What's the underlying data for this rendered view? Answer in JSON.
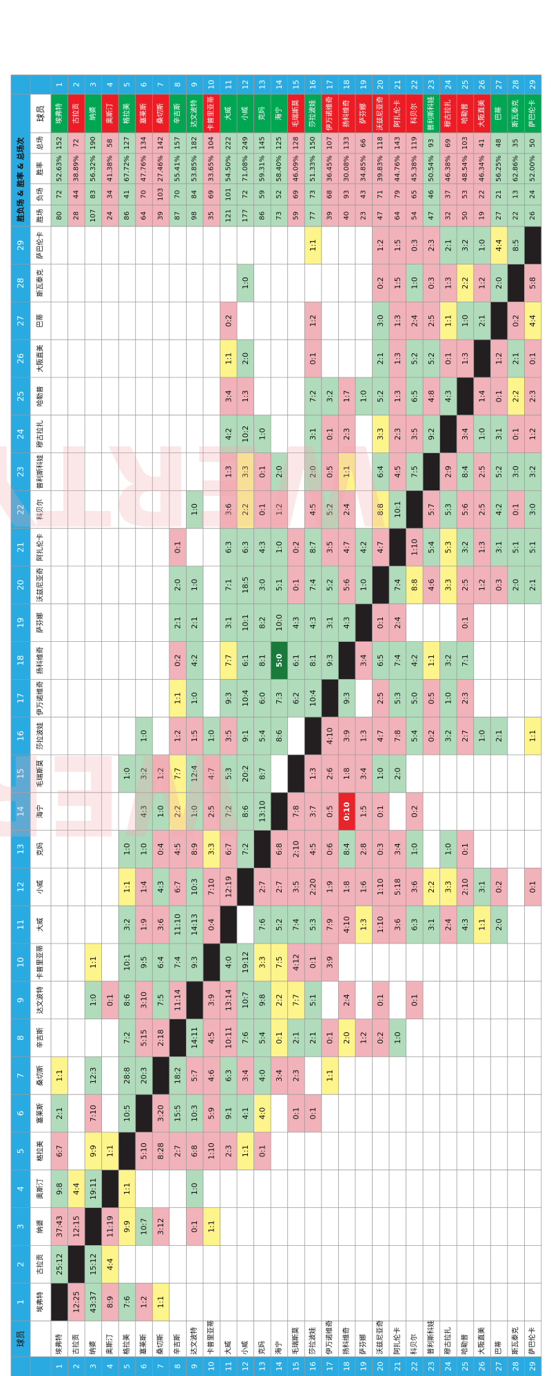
{
  "header": {
    "corner_label": "球员",
    "section_label": "胜负场 & 胜率 & 总场次",
    "col_numbers": [
      "1",
      "2",
      "3",
      "4",
      "5",
      "6",
      "7",
      "8",
      "9",
      "10",
      "11",
      "12",
      "13",
      "14",
      "15",
      "16",
      "17",
      "18",
      "19",
      "20",
      "21",
      "22",
      "23",
      "24",
      "25",
      "26",
      "27",
      "28",
      "29"
    ],
    "stats_headers": [
      "胜场",
      "负场",
      "胜率",
      "总场"
    ]
  },
  "watermark": "WERTY",
  "colors": {
    "header_blue": "#29abe2",
    "green": "#b0dcbb",
    "pink": "#f1b3b9",
    "yellow": "#fdf48c",
    "black": "#231f20",
    "dark_green": "#1a7a3c",
    "red": "#e8232a",
    "green_name": "#00a651",
    "red_name": "#ed1c24"
  },
  "players": [
    {
      "name": "埃弗特",
      "name_color": "green_name",
      "wins": 80,
      "losses": 72,
      "rate": "52.63%",
      "total": 152
    },
    {
      "name": "古拉贡",
      "name_color": "red_name",
      "wins": 28,
      "losses": 44,
      "rate": "38.89%",
      "total": 72
    },
    {
      "name": "纳婆",
      "name_color": "green_name",
      "wins": 107,
      "losses": 83,
      "rate": "56.32%",
      "total": 190
    },
    {
      "name": "奥斯汀",
      "name_color": "red_name",
      "wins": 24,
      "losses": 34,
      "rate": "41.38%",
      "total": 58
    },
    {
      "name": "格拉美",
      "name_color": "green_name",
      "wins": 86,
      "losses": 41,
      "rate": "67.72%",
      "total": 127
    },
    {
      "name": "塞莱斯",
      "name_color": "red_name",
      "wins": 64,
      "losses": 70,
      "rate": "47.76%",
      "total": 134
    },
    {
      "name": "桑切斯",
      "name_color": "red_name",
      "wins": 39,
      "losses": 103,
      "rate": "27.46%",
      "total": 142
    },
    {
      "name": "辛吉斯",
      "name_color": "green_name",
      "wins": 87,
      "losses": 70,
      "rate": "55.41%",
      "total": 157
    },
    {
      "name": "达文波特",
      "name_color": "green_name",
      "wins": 98,
      "losses": 84,
      "rate": "53.85%",
      "total": 182
    },
    {
      "name": "卡普里亚蒂",
      "name_color": "red_name",
      "wins": 35,
      "losses": 69,
      "rate": "33.65%",
      "total": 104
    },
    {
      "name": "大威",
      "name_color": "green_name",
      "wins": 121,
      "losses": 101,
      "rate": "54.50%",
      "total": 222
    },
    {
      "name": "小威",
      "name_color": "green_name",
      "wins": 177,
      "losses": 72,
      "rate": "71.08%",
      "total": 249
    },
    {
      "name": "克妈",
      "name_color": "green_name",
      "wins": 86,
      "losses": 59,
      "rate": "59.31%",
      "total": 145
    },
    {
      "name": "海宁",
      "name_color": "green_name",
      "wins": 73,
      "losses": 52,
      "rate": "58.40%",
      "total": 125
    },
    {
      "name": "毛瑞斯莫",
      "name_color": "red_name",
      "wins": 59,
      "losses": 69,
      "rate": "46.09%",
      "total": 128
    },
    {
      "name": "莎拉波娃",
      "name_color": "green_name",
      "wins": 77,
      "losses": 73,
      "rate": "51.33%",
      "total": 150
    },
    {
      "name": "伊万诺维奇",
      "name_color": "red_name",
      "wins": 39,
      "losses": 68,
      "rate": "36.45%",
      "total": 107
    },
    {
      "name": "扬科维奇",
      "name_color": "red_name",
      "wins": 40,
      "losses": 93,
      "rate": "30.08%",
      "total": 133
    },
    {
      "name": "萨芬娜",
      "name_color": "red_name",
      "wins": 23,
      "losses": 43,
      "rate": "34.85%",
      "total": 66
    },
    {
      "name": "沃兹尼亚奇",
      "name_color": "red_name",
      "wins": 47,
      "losses": 71,
      "rate": "39.83%",
      "total": 118
    },
    {
      "name": "阿扎伦卡",
      "name_color": "red_name",
      "wins": 64,
      "losses": 79,
      "rate": "44.76%",
      "total": 143
    },
    {
      "name": "科贝尔",
      "name_color": "red_name",
      "wins": 54,
      "losses": 65,
      "rate": "45.38%",
      "total": 119
    },
    {
      "name": "普利斯科娃",
      "name_color": "green_name",
      "wins": 47,
      "losses": 46,
      "rate": "50.54%",
      "total": 93
    },
    {
      "name": "穆古拉扎",
      "name_color": "red_name",
      "wins": 32,
      "losses": 37,
      "rate": "46.38%",
      "total": 69
    },
    {
      "name": "哈勒普",
      "name_color": "red_name",
      "wins": 50,
      "losses": 53,
      "rate": "48.54%",
      "total": 103
    },
    {
      "name": "大阪直美",
      "name_color": "red_name",
      "wins": 19,
      "losses": 22,
      "rate": "46.34%",
      "total": 41
    },
    {
      "name": "巴蒂",
      "name_color": "green_name",
      "wins": 27,
      "losses": 21,
      "rate": "56.25%",
      "total": 48
    },
    {
      "name": "斯瓦泰克",
      "name_color": "green_name",
      "wins": 22,
      "losses": 13,
      "rate": "62.86%",
      "total": 35
    },
    {
      "name": "萨巴伦卡",
      "name_color": "green_name",
      "wins": 26,
      "losses": 24,
      "rate": "52.00%",
      "total": 50
    }
  ],
  "matrix": [
    [
      "",
      "25:12",
      "37:43",
      "9:8",
      "6:7",
      "2:1",
      "1:1",
      "",
      "",
      "",
      "",
      "",
      "",
      "",
      "",
      "",
      "",
      "",
      "",
      "",
      "",
      "",
      "",
      "",
      "",
      "",
      "",
      "",
      ""
    ],
    [
      "12:25",
      "",
      "12:15",
      "4:4",
      "",
      "",
      "",
      "",
      "",
      "",
      "",
      "",
      "",
      "",
      "",
      "",
      "",
      "",
      "",
      "",
      "",
      "",
      "",
      "",
      "",
      "",
      "",
      "",
      ""
    ],
    [
      "43:37",
      "15:12",
      "",
      "19:11",
      "9:9",
      "7:10",
      "12:3",
      "",
      "1:0",
      "1:1",
      "",
      "",
      "",
      "",
      "",
      "",
      "",
      "",
      "",
      "",
      "",
      "",
      "",
      "",
      "",
      "",
      "",
      "",
      ""
    ],
    [
      "8:9",
      "4:4",
      "11:19",
      "",
      "1:1",
      "",
      "",
      "",
      "0:1",
      "",
      "",
      "",
      "",
      "",
      "",
      "",
      "",
      "",
      "",
      "",
      "",
      "",
      "",
      "",
      "",
      "",
      "",
      "",
      ""
    ],
    [
      "7:6",
      "",
      "9:9",
      "1:1",
      "",
      "10:5",
      "28:8",
      "7:2",
      "8:6",
      "10:1",
      "3:2",
      "1:1",
      "1:0",
      "",
      "1:0",
      "",
      "",
      "",
      "",
      "",
      "",
      "",
      "",
      "",
      "",
      "",
      "",
      "",
      ""
    ],
    [
      "1:2",
      "",
      "10:7",
      "",
      "5:10",
      "",
      "20:3",
      "5:15",
      "3:10",
      "9:5",
      "1:9",
      "1:4",
      "1:0",
      "4:3",
      "3:2",
      "1:0",
      "",
      "",
      "",
      "",
      "",
      "",
      "",
      "",
      "",
      "",
      "",
      "",
      ""
    ],
    [
      "1:1",
      "",
      "3:12",
      "",
      "8:28",
      "3:20",
      "",
      "2:18",
      "7:5",
      "6:4",
      "3:6",
      "4:3",
      "0:4",
      "1:0",
      "1:2",
      "",
      "",
      "",
      "",
      "",
      "",
      "",
      "",
      "",
      "",
      "",
      "",
      "",
      ""
    ],
    [
      "",
      "",
      "",
      "",
      "2:7",
      "15:5",
      "18:2",
      "",
      "11:14",
      "7:4",
      "11:10",
      "6:7",
      "4:5",
      "2:2",
      "7:7",
      "1:2",
      "1:1",
      "0:2",
      "2:1",
      "2:0",
      "0:1",
      "",
      "",
      "",
      "",
      "",
      "",
      "",
      ""
    ],
    [
      "",
      "",
      "0:1",
      "1:0",
      "6:8",
      "10:3",
      "5:7",
      "14:11",
      "",
      "9:3",
      "14:13",
      "10:3",
      "8:9",
      "1:0",
      "12:4",
      "1:5",
      "1:0",
      "4:2",
      "2:1",
      "1:0",
      "",
      "1:0",
      "",
      "",
      "",
      "",
      "",
      "",
      ""
    ],
    [
      "",
      "",
      "1:1",
      "",
      "1:10",
      "5:9",
      "4:6",
      "4:5",
      "3:9",
      "",
      "0:4",
      "7:10",
      "3:3",
      "2:5",
      "4:7",
      "1:0",
      "",
      "",
      "",
      "",
      "",
      "",
      "",
      "",
      "",
      "",
      "",
      "",
      ""
    ],
    [
      "",
      "",
      "",
      "",
      "2:3",
      "9:1",
      "6:3",
      "10:11",
      "13:14",
      "4:0",
      "",
      "12:19",
      "6:7",
      "7:2",
      "5:3",
      "3:5",
      "9:3",
      "7:7",
      "3:1",
      "7:1",
      "6:3",
      "3:6",
      "1:3",
      "4:2",
      "3:4",
      "1:1",
      "0:2",
      "",
      ""
    ],
    [
      "",
      "",
      "",
      "",
      "1:1",
      "4:1",
      "3:4",
      "7:6",
      "10:7",
      "19:12",
      "",
      "",
      "7:2",
      "8:6",
      "20:2",
      "9:1",
      "10:4",
      "6:1",
      "10:1",
      "18:5",
      "6:3",
      "2:2",
      "3:3",
      "10:2",
      "1:3",
      "2:0",
      "",
      "1:0",
      ""
    ],
    [
      "",
      "",
      "",
      "",
      "0:1",
      "4:0",
      "4:0",
      "5:4",
      "9:8",
      "3:3",
      "7:6",
      "2:7",
      "",
      "13:10",
      "8:7",
      "5:4",
      "6:0",
      "8:1",
      "8:2",
      "3:0",
      "4:3",
      "0:1",
      "0:1",
      "1:0",
      "",
      "",
      "",
      "",
      ""
    ],
    [
      "",
      "",
      "",
      "",
      "",
      "",
      "3:4",
      "0:1",
      "2:2",
      "7:5",
      "5:2",
      "2:7",
      "6:8",
      "10:13",
      "",
      "8:6",
      "7:3",
      "5:0",
      "10:0",
      "5:1",
      "1:0",
      "1:2",
      "2:0",
      "",
      "",
      "",
      "",
      "",
      ""
    ],
    [
      "",
      "",
      "",
      "",
      "",
      "0:1",
      "2:3",
      "2:1",
      "7:7",
      "4:12",
      "7:4",
      "3:5",
      "2:10",
      "7:8",
      "6:8",
      "",
      "6:2",
      "6:1",
      "4:3",
      "0:1",
      "0:2",
      "",
      "",
      "",
      "",
      "",
      "",
      "",
      ""
    ],
    [
      "",
      "",
      "",
      "",
      "",
      "0:1",
      "",
      "2:1",
      "5:1",
      "0:1",
      "5:3",
      "2:20",
      "4:5",
      "3:7",
      "1:3",
      "",
      "10:4",
      "8:1",
      "4:3",
      "7:4",
      "8:7",
      "4:5",
      "2:0",
      "3:1",
      "7:2",
      "0:1",
      "1:2",
      "",
      "1:1"
    ],
    [
      "",
      "",
      "",
      "",
      "",
      "",
      "1:1",
      "0:1",
      "",
      "3:9",
      "7:9",
      "1:9",
      "0:6",
      "0:5",
      "2:6",
      "4:10",
      "",
      "9:3",
      "3:1",
      "5:2",
      "3:5",
      "5:2",
      "0:5",
      "0:1",
      "3:2",
      "",
      "",
      "",
      ""
    ],
    [
      "",
      "",
      "",
      "",
      "",
      "",
      "",
      "2:0",
      "2:4",
      "",
      "4:10",
      "1:8",
      "8:4",
      "0:10",
      "1:8",
      "3:9",
      "9:3",
      "",
      "4:3",
      "5:6",
      "4:7",
      "2:4",
      "1:1",
      "2:3",
      "1:7",
      "",
      "",
      "",
      ""
    ],
    [
      "",
      "",
      "",
      "",
      "",
      "",
      "",
      "1:2",
      "",
      "",
      "1:3",
      "1:6",
      "2:8",
      "1:5",
      "3:4",
      "1:3",
      "",
      "3:4",
      "",
      "1:0",
      "4:2",
      "",
      "",
      "",
      "1:0",
      "",
      "",
      "",
      ""
    ],
    [
      "",
      "",
      "",
      "",
      "",
      "",
      "",
      "0:2",
      "0:1",
      "",
      "1:10",
      "1:10",
      "0:3",
      "0:1",
      "1:0",
      "4:7",
      "2:5",
      "6:5",
      "0:1",
      "",
      "4:7",
      "8:8",
      "6:4",
      "3:3",
      "5:2",
      "2:1",
      "3:0",
      "0:2",
      "1:2"
    ],
    [
      "",
      "",
      "",
      "",
      "",
      "",
      "",
      "1:0",
      "",
      "",
      "3:6",
      "5:18",
      "3:4",
      "",
      "2:0",
      "7:8",
      "5:3",
      "7:4",
      "2:4",
      "7:4",
      "",
      "10:1",
      "4:5",
      "2:3",
      "1:3",
      "1:3",
      "1:3",
      "1:5",
      "1:5"
    ],
    [
      "",
      "",
      "",
      "",
      "",
      "",
      "",
      "",
      "0:1",
      "",
      "6:3",
      "3:6",
      "1:0",
      "0:2",
      "",
      "5:4",
      "5:0",
      "4:2",
      "",
      "8:8",
      "1:10",
      "",
      "7:5",
      "3:5",
      "6:5",
      "5:2",
      "2:4",
      "1:0",
      "0:3"
    ],
    [
      "",
      "",
      "",
      "",
      "",
      "",
      "",
      "",
      "",
      "",
      "3:1",
      "2:2",
      "",
      "",
      "",
      "0:2",
      "0:5",
      "1:1",
      "",
      "4:6",
      "5:4",
      "5:7",
      "",
      "9:2",
      "4:8",
      "5:2",
      "2:5",
      "0:3",
      "2:3"
    ],
    [
      "",
      "",
      "",
      "",
      "",
      "",
      "",
      "",
      "",
      "",
      "2:4",
      "3:3",
      "1:0",
      "",
      "",
      "3:2",
      "1:0",
      "3:2",
      "",
      "3:3",
      "5:3",
      "5:3",
      "2:9",
      "",
      "4:3",
      "0:1",
      "1:1",
      "1:3",
      "2:1"
    ],
    [
      "",
      "",
      "",
      "",
      "",
      "",
      "",
      "",
      "",
      "",
      "4:3",
      "2:10",
      "0:1",
      "",
      "",
      "2:7",
      "2:3",
      "7:1",
      "0:1",
      "2:5",
      "3:2",
      "5:6",
      "8:4",
      "3:4",
      "",
      "1:3",
      "1:0",
      "2:2",
      "3:2"
    ],
    [
      "",
      "",
      "",
      "",
      "",
      "",
      "",
      "",
      "",
      "",
      "1:1",
      "3:1",
      "",
      "",
      "",
      "1:0",
      "",
      "",
      "",
      "1:2",
      "1:3",
      "2:5",
      "2:5",
      "1:0",
      "1:4",
      "",
      "2:1",
      "1:2",
      "1:0"
    ],
    [
      "",
      "",
      "",
      "",
      "",
      "",
      "",
      "",
      "",
      "",
      "2:0",
      "0:2",
      "",
      "",
      "",
      "2:1",
      "",
      "",
      "",
      "0:3",
      "3:1",
      "4:2",
      "5:2",
      "3:1",
      "0:1",
      "1:2",
      "",
      "2:0",
      "4:4"
    ],
    [
      "",
      "",
      "",
      "",
      "",
      "",
      "",
      "",
      "",
      "",
      "",
      "",
      "",
      "",
      "",
      "",
      "",
      "",
      "",
      "2:0",
      "5:1",
      "0:1",
      "3:0",
      "0:1",
      "2:2",
      "2:1",
      "0:2",
      "",
      "8:5"
    ],
    [
      "",
      "",
      "",
      "",
      "",
      "",
      "",
      "",
      "",
      "",
      "",
      "0:1",
      "",
      "",
      "",
      "1:1",
      "",
      "",
      "",
      "2:1",
      "5:1",
      "3:0",
      "3:2",
      "1:2",
      "2:3",
      "0:1",
      "4:4",
      "5:8",
      ""
    ]
  ],
  "yellow_cells": [
    "0-6",
    "1-3",
    "2-4",
    "2-9",
    "3-1",
    "3-4",
    "4-3",
    "4-11",
    "7-13",
    "7-14",
    "7-16",
    "9-12",
    "10-17",
    "10-25",
    "11-21",
    "11-22",
    "12-5",
    "13-7",
    "13-8",
    "13-9",
    "15-28",
    "16-6",
    "17-7",
    "17-22",
    "18-10",
    "19-21",
    "19-23",
    "21-19",
    "22-11",
    "23-11",
    "23-20",
    "24-27",
    "25-10",
    "26-28"
  ],
  "special_cells": {
    "13-17": "dark_green",
    "17-13": "red"
  }
}
